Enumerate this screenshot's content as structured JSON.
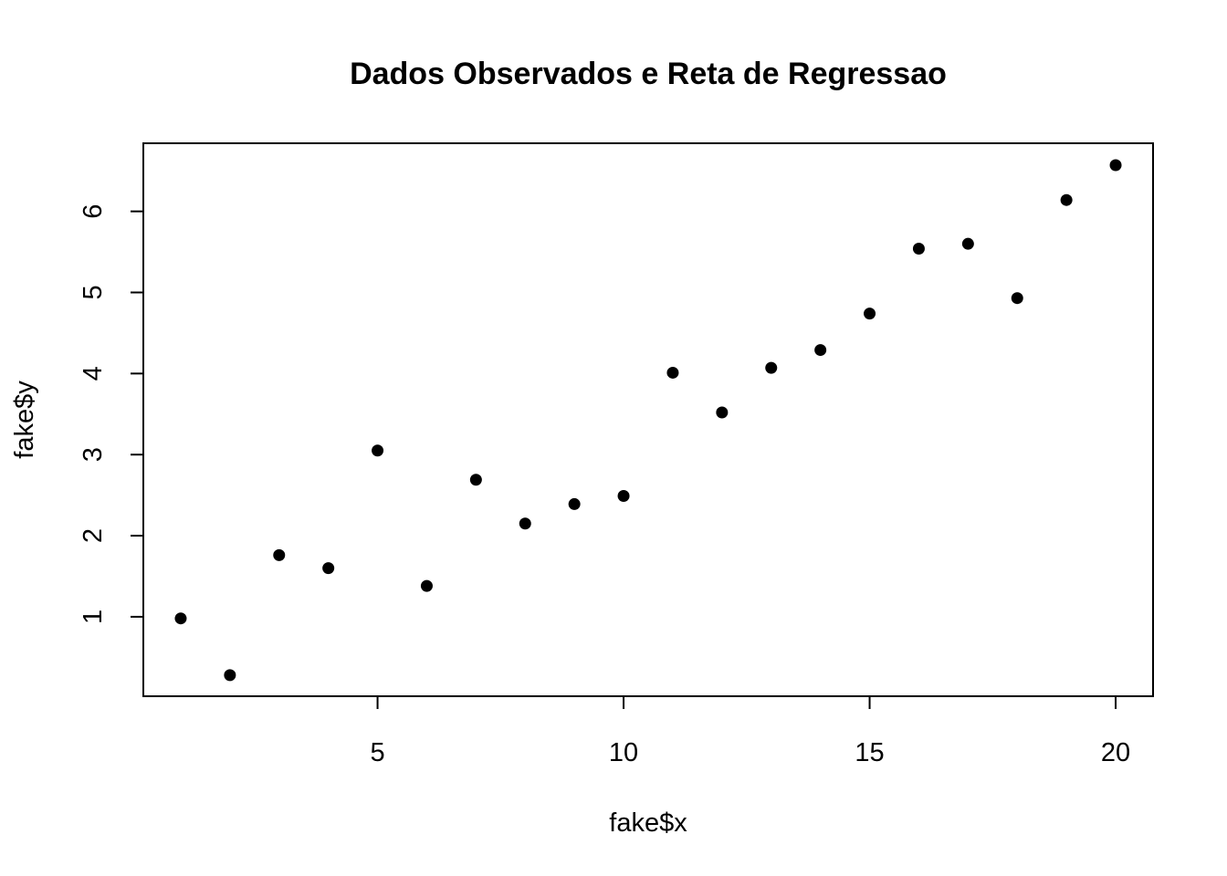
{
  "chart_data": {
    "type": "scatter",
    "title": "Dados Observados e Reta de Regressao",
    "xlabel": "fake$x",
    "ylabel": "fake$y",
    "xlim": [
      0.24,
      20.76
    ],
    "ylim": [
      0.02,
      6.84
    ],
    "xticks": [
      5,
      10,
      15,
      20
    ],
    "yticks": [
      1,
      2,
      3,
      4,
      5,
      6
    ],
    "grid": false,
    "legend": "none",
    "point_color": "#000000",
    "series": [
      {
        "x": [
          1,
          2,
          3,
          4,
          5,
          6,
          7,
          8,
          9,
          10,
          11,
          12,
          13,
          14,
          15,
          16,
          17,
          18,
          19,
          20
        ],
        "y": [
          0.98,
          0.28,
          1.76,
          1.6,
          3.05,
          1.38,
          2.69,
          2.15,
          2.39,
          2.49,
          4.01,
          3.52,
          4.07,
          4.29,
          4.74,
          5.54,
          5.6,
          4.93,
          6.14,
          6.57
        ]
      }
    ]
  }
}
